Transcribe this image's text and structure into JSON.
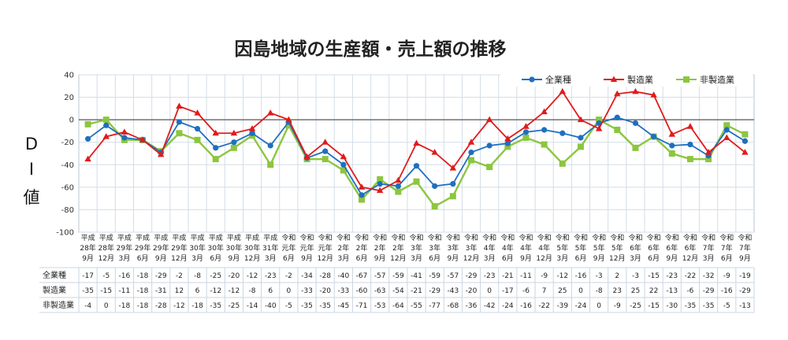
{
  "chart_data": {
    "type": "line",
    "title": "因島地域の生産額・売上額の推移",
    "ylabel": [
      "D",
      "I",
      "値"
    ],
    "ylim": [
      -100,
      40
    ],
    "yticks": [
      40,
      20,
      0,
      -20,
      -40,
      -60,
      -80,
      -100
    ],
    "grid": true,
    "legend_position": "top-right",
    "categories": [
      [
        "平成",
        "28年",
        "9月"
      ],
      [
        "平成",
        "28年",
        "12月"
      ],
      [
        "平成",
        "29年",
        "3月"
      ],
      [
        "平成",
        "29年",
        "6月"
      ],
      [
        "平成",
        "29年",
        "9月"
      ],
      [
        "平成",
        "29年",
        "12月"
      ],
      [
        "平成",
        "30年",
        "3月"
      ],
      [
        "平成",
        "30年",
        "6月"
      ],
      [
        "平成",
        "30年",
        "9月"
      ],
      [
        "平成",
        "30年",
        "12月"
      ],
      [
        "平成",
        "31年",
        "3月"
      ],
      [
        "令和",
        "元年",
        "6月"
      ],
      [
        "令和",
        "元年",
        "9月"
      ],
      [
        "令和",
        "元年",
        "12月"
      ],
      [
        "令和",
        "2年",
        "3月"
      ],
      [
        "令和",
        "2年",
        "6月"
      ],
      [
        "令和",
        "2年",
        "9月"
      ],
      [
        "令和",
        "2年",
        "12月"
      ],
      [
        "令和",
        "3年",
        "3月"
      ],
      [
        "令和",
        "3年",
        "6月"
      ],
      [
        "令和",
        "3年",
        "9月"
      ],
      [
        "令和",
        "3年",
        "12月"
      ],
      [
        "令和",
        "4年",
        "3月"
      ],
      [
        "令和",
        "4年",
        "6月"
      ],
      [
        "令和",
        "4年",
        "9月"
      ],
      [
        "令和",
        "4年",
        "12月"
      ],
      [
        "令和",
        "5年",
        "3月"
      ],
      [
        "令和",
        "5年",
        "6月"
      ],
      [
        "令和",
        "5年",
        "9月"
      ],
      [
        "令和",
        "5年",
        "12月"
      ],
      [
        "令和",
        "6年",
        "3月"
      ],
      [
        "令和",
        "6年",
        "6月"
      ],
      [
        "令和",
        "6年",
        "9月"
      ],
      [
        "令和",
        "6年",
        "12月"
      ],
      [
        "令和",
        "7年",
        "3月"
      ],
      [
        "令和",
        "7年",
        "6月"
      ],
      [
        "令和",
        "7年",
        "9月"
      ]
    ],
    "series": [
      {
        "name": "全業種",
        "color": "#1f6fbf",
        "marker": "circle",
        "values": [
          -17,
          -5,
          -16,
          -18,
          -29,
          -2,
          -8,
          -25,
          -20,
          -12,
          -23,
          -2,
          -34,
          -28,
          -40,
          -67,
          -57,
          -59,
          -41,
          -59,
          -57,
          -29,
          -23,
          -21,
          -11,
          -9,
          -12,
          -16,
          -3,
          2,
          -3,
          -15,
          -23,
          -22,
          -32,
          -9,
          -19
        ]
      },
      {
        "name": "製造業",
        "color": "#e01b1b",
        "marker": "triangle",
        "values": [
          -35,
          -15,
          -11,
          -18,
          -31,
          12,
          6,
          -12,
          -12,
          -8,
          6,
          0,
          -33,
          -20,
          -33,
          -60,
          -63,
          -54,
          -21,
          -29,
          -43,
          -20,
          0,
          -17,
          -6,
          7,
          25,
          0,
          -8,
          23,
          25,
          22,
          -13,
          -6,
          -29,
          -16,
          -29
        ]
      },
      {
        "name": "非製造業",
        "color": "#8cc63f",
        "marker": "square",
        "values": [
          -4,
          0,
          -18,
          -18,
          -28,
          -12,
          -18,
          -35,
          -25,
          -14,
          -40,
          -5,
          -35,
          -35,
          -45,
          -71,
          -53,
          -64,
          -55,
          -77,
          -68,
          -36,
          -42,
          -24,
          -16,
          -22,
          -39,
          -24,
          0,
          -9,
          -25,
          -15,
          -30,
          -35,
          -35,
          -5,
          -13
        ]
      }
    ]
  }
}
